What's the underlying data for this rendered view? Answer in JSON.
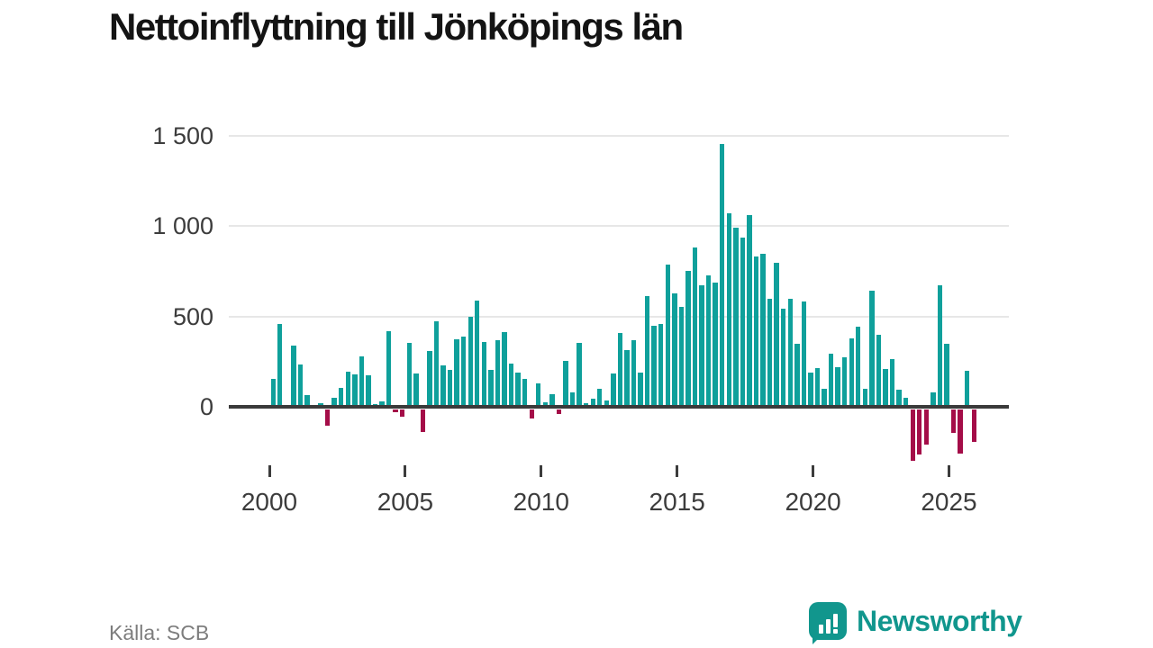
{
  "header": {
    "title": "Nettoinflyttning till Jönköpings län"
  },
  "footer": {
    "source": "Källa: SCB",
    "logo_text": "Newsworthy"
  },
  "colors": {
    "positive": "#0fa09b",
    "negative": "#a40d48",
    "axis": "#3a3a3a",
    "grid": "#e7e7e7",
    "logo": "#11968d"
  },
  "chart_data": {
    "type": "bar",
    "title": "Nettoinflyttning till Jönköpings län",
    "frequency": "quarterly",
    "start": "2000-Q1",
    "end": "2025-Q4",
    "grid": true,
    "ylim": [
      -350,
      1550
    ],
    "y_ticks": [
      {
        "value": 0,
        "label": "0"
      },
      {
        "value": 500,
        "label": "500"
      },
      {
        "value": 1000,
        "label": "1 000"
      },
      {
        "value": 1500,
        "label": "1 500"
      }
    ],
    "x_ticks": [
      "2000",
      "2005",
      "2010",
      "2015",
      "2020",
      "2025"
    ],
    "series": [
      {
        "name": "Nettoinflyttning",
        "values": [
          155,
          460,
          0,
          340,
          235,
          65,
          0,
          20,
          -90,
          50,
          105,
          195,
          180,
          280,
          175,
          15,
          30,
          420,
          -15,
          -40,
          355,
          185,
          -125,
          310,
          475,
          230,
          205,
          375,
          390,
          500,
          585,
          360,
          205,
          370,
          415,
          240,
          190,
          155,
          -50,
          130,
          25,
          70,
          -25,
          255,
          80,
          355,
          20,
          45,
          100,
          35,
          185,
          410,
          315,
          370,
          190,
          610,
          450,
          460,
          785,
          625,
          550,
          750,
          880,
          670,
          725,
          685,
          1455,
          1070,
          990,
          935,
          1060,
          830,
          845,
          595,
          795,
          540,
          595,
          350,
          580,
          190,
          215,
          100,
          295,
          220,
          275,
          380,
          445,
          100,
          640,
          400,
          210,
          265,
          95,
          50,
          -285,
          -250,
          -195,
          80,
          670,
          350,
          -130,
          -245,
          200,
          -180
        ]
      }
    ]
  }
}
